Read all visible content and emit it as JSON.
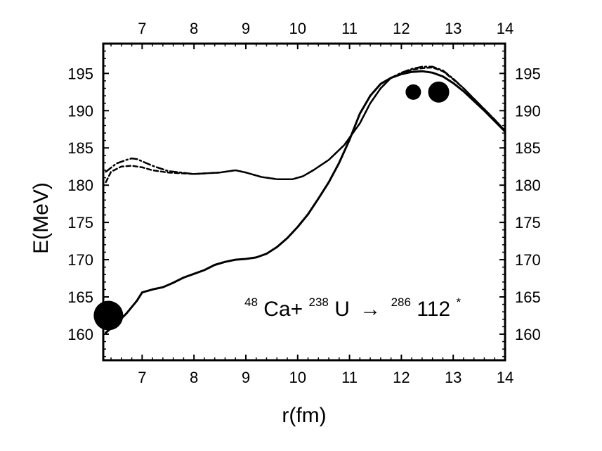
{
  "chart_data": {
    "type": "line",
    "xlabel": "r(fm)",
    "ylabel": "E(MeV)",
    "xlim": [
      6.25,
      14
    ],
    "ylim": [
      156.5,
      199
    ],
    "x_ticks": [
      7,
      8,
      9,
      10,
      11,
      12,
      13,
      14
    ],
    "y_ticks": [
      160,
      165,
      170,
      175,
      180,
      185,
      190,
      195
    ],
    "grid": false,
    "annotation": {
      "sup1": "48",
      "t1": "Ca+",
      "sup2": "238",
      "t2": "U",
      "arrow": "→",
      "sup3": "286",
      "t3": "112",
      "sup4": "*"
    },
    "series": [
      {
        "style": "solid",
        "x": [
          6.3,
          6.5,
          6.7,
          6.9,
          7.0,
          7.2,
          7.4,
          7.6,
          7.8,
          8.0,
          8.2,
          8.4,
          8.6,
          8.8,
          9.0,
          9.2,
          9.4,
          9.6,
          9.8,
          10.0,
          10.2,
          10.4,
          10.6,
          10.8,
          11.0,
          11.2,
          11.4,
          11.6,
          11.8,
          12.0,
          12.2,
          12.4,
          12.6,
          12.8,
          13.0,
          13.2,
          13.4,
          13.6,
          13.8,
          14.0
        ],
        "y": [
          160.2,
          161.4,
          162.8,
          164.5,
          165.6,
          166.0,
          166.3,
          166.9,
          167.6,
          168.1,
          168.6,
          169.3,
          169.7,
          170.0,
          170.1,
          170.3,
          170.8,
          171.7,
          172.9,
          174.4,
          176.1,
          178.2,
          180.4,
          183.0,
          186.1,
          189.6,
          192.0,
          193.6,
          194.4,
          194.9,
          195.2,
          195.3,
          195.1,
          194.6,
          193.7,
          192.6,
          191.3,
          190.0,
          188.6,
          187.2
        ]
      },
      {
        "style": "dashed",
        "x": [
          6.3,
          6.4,
          6.6,
          6.8,
          7.0,
          7.2,
          7.5,
          8.0,
          8.5,
          8.8,
          9.0,
          9.3,
          9.6,
          9.9,
          10.1,
          10.3,
          10.6,
          10.9,
          11.2,
          11.4,
          11.6,
          11.8,
          12.0,
          12.2,
          12.4,
          12.6,
          12.8,
          13.0,
          13.2,
          13.4,
          13.6,
          13.8,
          14.0
        ],
        "y": [
          180.4,
          181.8,
          182.5,
          182.6,
          182.4,
          182.0,
          181.7,
          181.5,
          181.7,
          182.0,
          181.7,
          181.1,
          180.8,
          180.8,
          181.2,
          182.0,
          183.4,
          185.4,
          188.3,
          191.0,
          193.0,
          194.4,
          195.0,
          195.5,
          195.7,
          195.8,
          195.3,
          194.2,
          193.0,
          191.6,
          190.2,
          188.8,
          187.3
        ]
      },
      {
        "style": "dash-dot",
        "x": [
          6.3,
          6.5,
          6.7,
          6.8,
          6.9,
          7.0,
          7.2,
          7.5,
          8.0,
          8.5,
          8.8,
          9.0,
          9.3,
          9.6,
          9.9,
          10.1,
          10.3,
          10.6,
          10.9,
          11.2,
          11.4,
          11.6,
          11.8,
          12.0,
          12.2,
          12.4,
          12.6,
          12.8,
          13.0,
          13.2,
          13.4,
          13.6,
          13.8,
          14.0
        ],
        "y": [
          181.8,
          182.9,
          183.4,
          183.6,
          183.5,
          183.2,
          182.6,
          181.9,
          181.5,
          181.7,
          182.0,
          181.7,
          181.1,
          180.8,
          180.8,
          181.2,
          182.0,
          183.4,
          185.4,
          188.3,
          191.0,
          193.0,
          194.4,
          195.1,
          195.6,
          195.9,
          195.9,
          195.4,
          194.3,
          193.0,
          191.6,
          190.2,
          188.8,
          187.3
        ]
      }
    ],
    "markers": [
      {
        "x": 6.35,
        "y": 162.5,
        "size": "large"
      },
      {
        "x": 12.23,
        "y": 192.5,
        "size": "small"
      },
      {
        "x": 12.72,
        "y": 192.5,
        "size": "medium"
      }
    ]
  }
}
